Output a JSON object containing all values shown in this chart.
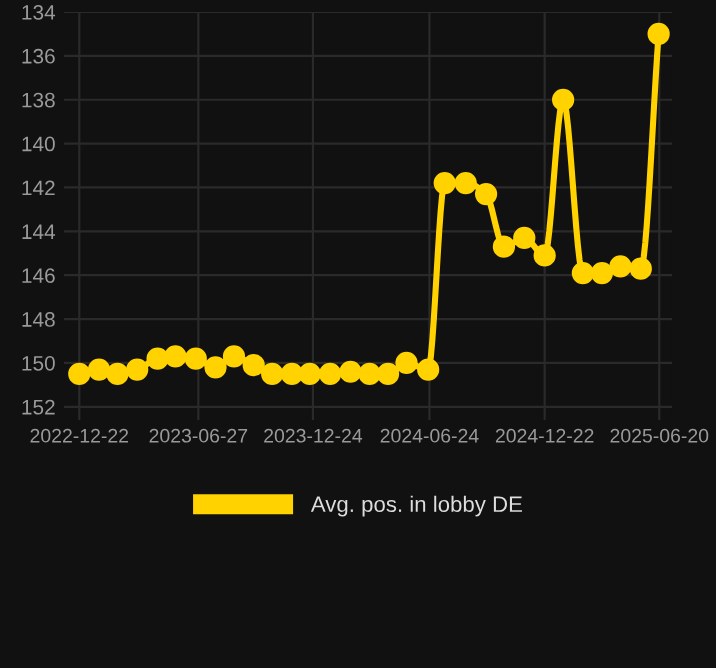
{
  "chart_data": {
    "type": "line",
    "x": [
      "2022-12-22",
      "2023-01-22",
      "2023-02-20",
      "2023-03-23",
      "2023-04-24",
      "2023-05-22",
      "2023-06-23",
      "2023-07-24",
      "2023-08-22",
      "2023-09-22",
      "2023-10-21",
      "2023-11-21",
      "2023-12-19",
      "2024-01-20",
      "2024-02-21",
      "2024-03-22",
      "2024-04-20",
      "2024-05-19",
      "2024-06-22",
      "2024-07-18",
      "2024-08-20",
      "2024-09-21",
      "2024-10-19",
      "2024-11-20",
      "2024-12-22",
      "2025-01-20",
      "2025-02-20",
      "2025-03-22",
      "2025-04-20",
      "2025-05-22",
      "2025-06-19"
    ],
    "series": [
      {
        "name": "Avg. pos. in lobby DE",
        "color": "#ffd200",
        "values": [
          150.5,
          150.3,
          150.5,
          150.3,
          149.8,
          149.7,
          149.8,
          150.2,
          149.7,
          150.1,
          150.5,
          150.5,
          150.5,
          150.5,
          150.4,
          150.5,
          150.5,
          150.0,
          150.3,
          141.8,
          141.8,
          142.3,
          144.7,
          144.3,
          145.1,
          138.0,
          145.9,
          145.9,
          145.6,
          145.7,
          135.0
        ]
      }
    ],
    "xlim": [
      "2022-11-28",
      "2025-07-10"
    ],
    "xticks": [
      "2022-12-22",
      "2023-06-27",
      "2023-12-24",
      "2024-06-24",
      "2024-12-22",
      "2025-06-20"
    ],
    "ylim": [
      152.6,
      134
    ],
    "yticks": [
      134,
      136,
      138,
      140,
      142,
      144,
      146,
      148,
      150,
      152
    ],
    "grid": true,
    "legend": "bottom",
    "marker": "circle",
    "line_style": "solid"
  }
}
